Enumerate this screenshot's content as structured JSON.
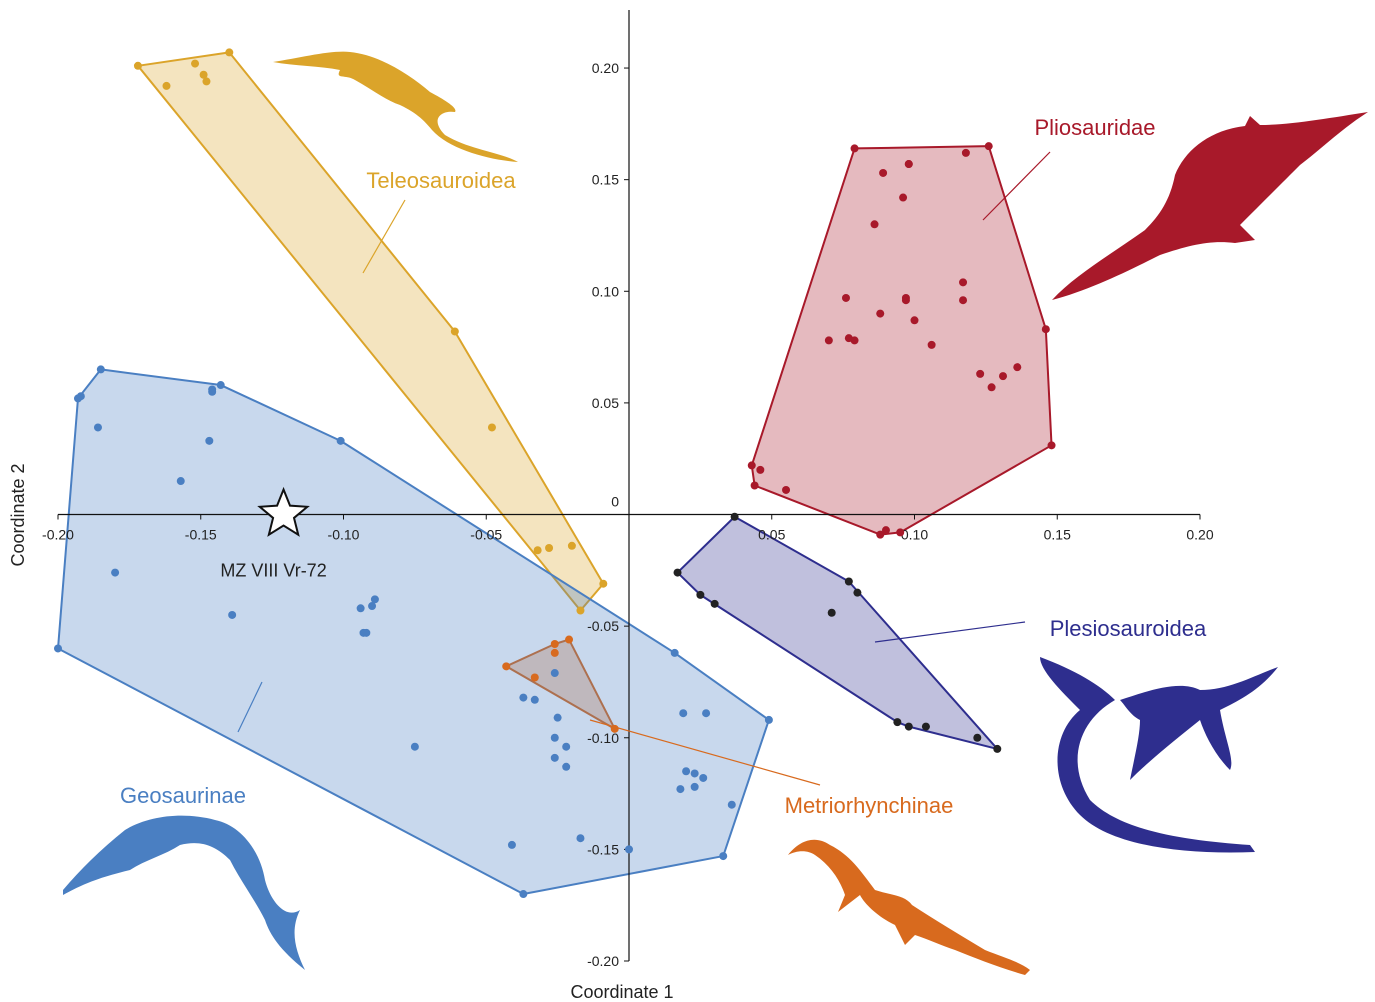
{
  "chart_data": {
    "type": "scatter",
    "x_label": "Coordinate 1",
    "y_label": "Coordinate 2",
    "xlim": [
      -0.2,
      0.2
    ],
    "ylim": [
      -0.2,
      0.226
    ],
    "xticks": [
      {
        "value": -0.2,
        "label": "-0.20"
      },
      -0.15,
      {
        "value": -0.1,
        "label": "-0.10"
      },
      -0.05,
      0.05,
      {
        "value": 0.1,
        "label": "0.10"
      },
      0.15,
      {
        "value": 0.2,
        "label": "0.20"
      }
    ],
    "yticks": [
      {
        "value": 0.2,
        "label": "0.20"
      },
      0.15,
      {
        "value": 0.1,
        "label": "0.10"
      },
      0.05,
      0,
      -0.05,
      {
        "value": -0.1,
        "label": "-0.10"
      },
      -0.15,
      {
        "value": -0.2,
        "label": "-0.20"
      }
    ],
    "convex_hulls": true,
    "series": [
      {
        "name": "Teleosauroidea",
        "color": "#dba42a",
        "x": [
          -0.172,
          -0.14,
          -0.162,
          -0.152,
          -0.149,
          -0.148,
          -0.061,
          -0.048,
          -0.032,
          -0.028,
          -0.02,
          -0.009,
          -0.017
        ],
        "y": [
          0.201,
          0.207,
          0.192,
          0.202,
          0.197,
          0.194,
          0.082,
          0.039,
          -0.016,
          -0.015,
          -0.014,
          -0.031,
          -0.043
        ]
      },
      {
        "name": "Pliosauridae",
        "color": "#a8192a",
        "x": [
          0.079,
          0.126,
          0.118,
          0.089,
          0.098,
          0.098,
          0.096,
          0.086,
          0.076,
          0.088,
          0.097,
          0.097,
          0.1,
          0.106,
          0.117,
          0.117,
          0.07,
          0.077,
          0.079,
          0.09,
          0.088,
          0.095,
          0.146,
          0.136,
          0.131,
          0.123,
          0.127,
          0.148,
          0.043,
          0.046,
          0.044,
          0.055
        ],
        "y": [
          0.164,
          0.165,
          0.162,
          0.153,
          0.157,
          0.157,
          0.142,
          0.13,
          0.097,
          0.09,
          0.096,
          0.097,
          0.087,
          0.076,
          0.104,
          0.096,
          0.078,
          0.079,
          0.078,
          -0.007,
          -0.009,
          -0.008,
          0.083,
          0.066,
          0.062,
          0.063,
          0.057,
          0.031,
          0.022,
          0.02,
          0.013,
          0.011
        ]
      },
      {
        "name": "Plesiosauroidea",
        "color": "#2e2e8e",
        "point_color": "#222222",
        "x": [
          0.037,
          0.017,
          0.025,
          0.03,
          0.077,
          0.08,
          0.071,
          0.094,
          0.098,
          0.104,
          0.122,
          0.129
        ],
        "y": [
          -0.001,
          -0.026,
          -0.036,
          -0.04,
          -0.03,
          -0.035,
          -0.044,
          -0.093,
          -0.095,
          -0.095,
          -0.1,
          -0.105
        ]
      },
      {
        "name": "Metriorhynchinae",
        "color": "#d86a1e",
        "x": [
          -0.043,
          -0.026,
          -0.021,
          -0.026,
          -0.033,
          -0.005
        ],
        "y": [
          -0.068,
          -0.058,
          -0.056,
          -0.062,
          -0.073,
          -0.096
        ]
      },
      {
        "name": "Geosaurinae",
        "color": "#4a7fc2",
        "x": [
          -0.185,
          -0.192,
          -0.193,
          -0.143,
          -0.146,
          -0.146,
          -0.101,
          -0.186,
          -0.147,
          -0.157,
          -0.18,
          -0.2,
          -0.139,
          -0.089,
          -0.094,
          -0.09,
          -0.093,
          -0.092,
          -0.026,
          -0.037,
          -0.033,
          -0.025,
          -0.075,
          -0.026,
          -0.022,
          -0.026,
          -0.022,
          0.016,
          0.019,
          0.027,
          0.049,
          0.02,
          0.023,
          0.026,
          0.018,
          0.023,
          0.036,
          0.033,
          0.0,
          -0.017,
          -0.041,
          -0.037
        ],
        "y": [
          0.065,
          0.053,
          0.052,
          0.058,
          0.056,
          0.055,
          0.033,
          0.039,
          0.033,
          0.015,
          -0.026,
          -0.06,
          -0.045,
          -0.038,
          -0.042,
          -0.041,
          -0.053,
          -0.053,
          -0.071,
          -0.082,
          -0.083,
          -0.091,
          -0.104,
          -0.1,
          -0.104,
          -0.109,
          -0.113,
          -0.062,
          -0.089,
          -0.089,
          -0.092,
          -0.115,
          -0.116,
          -0.118,
          -0.123,
          -0.122,
          -0.13,
          -0.153,
          -0.15,
          -0.145,
          -0.148,
          -0.17
        ]
      }
    ],
    "specimen": {
      "name": "MZ VIII Vr-72",
      "x": -0.121,
      "y": 0
    }
  }
}
